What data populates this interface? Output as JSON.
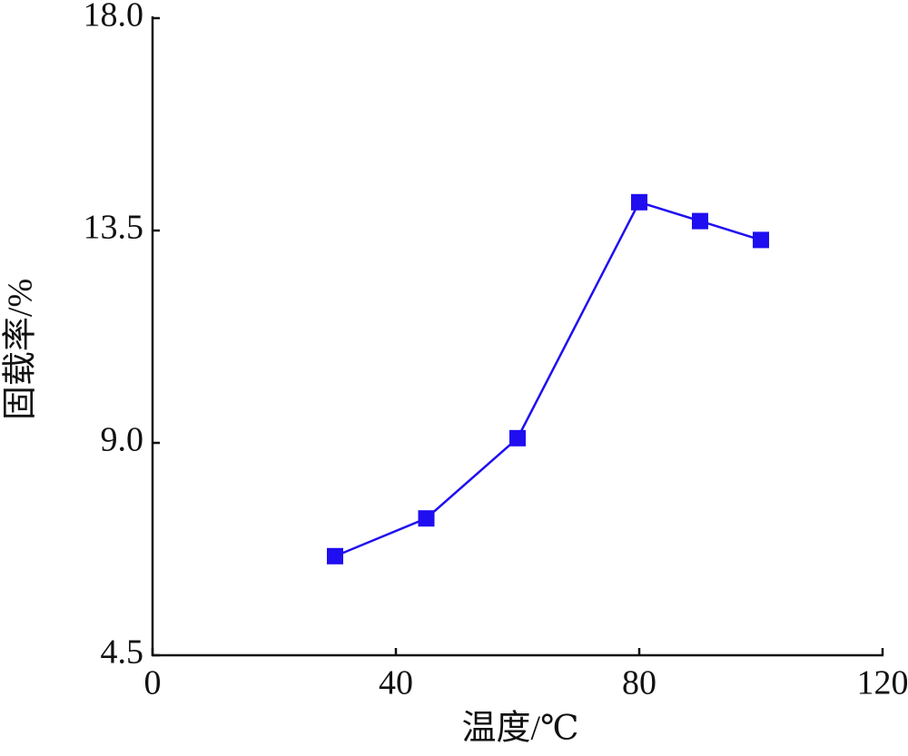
{
  "chart_data": {
    "type": "line",
    "x_label": "温度/℃",
    "y_label": "固载率/%",
    "x": [
      30,
      45,
      60,
      80,
      90,
      100
    ],
    "series": [
      {
        "color": "#1f0ef0",
        "values": [
          6.6,
          7.4,
          9.1,
          14.1,
          13.7,
          13.3
        ]
      }
    ],
    "xlim": [
      0,
      120
    ],
    "xticks": [
      0,
      40,
      80,
      120
    ],
    "ylim": [
      4.5,
      18.0
    ],
    "yticks": [
      {
        "value": 4.5,
        "label": "4.5"
      },
      {
        "value": 9.0,
        "label": "9.0"
      },
      {
        "value": 13.5,
        "label": "13.5"
      },
      {
        "value": 18.0,
        "label": "18.0"
      }
    ],
    "grid": false
  }
}
